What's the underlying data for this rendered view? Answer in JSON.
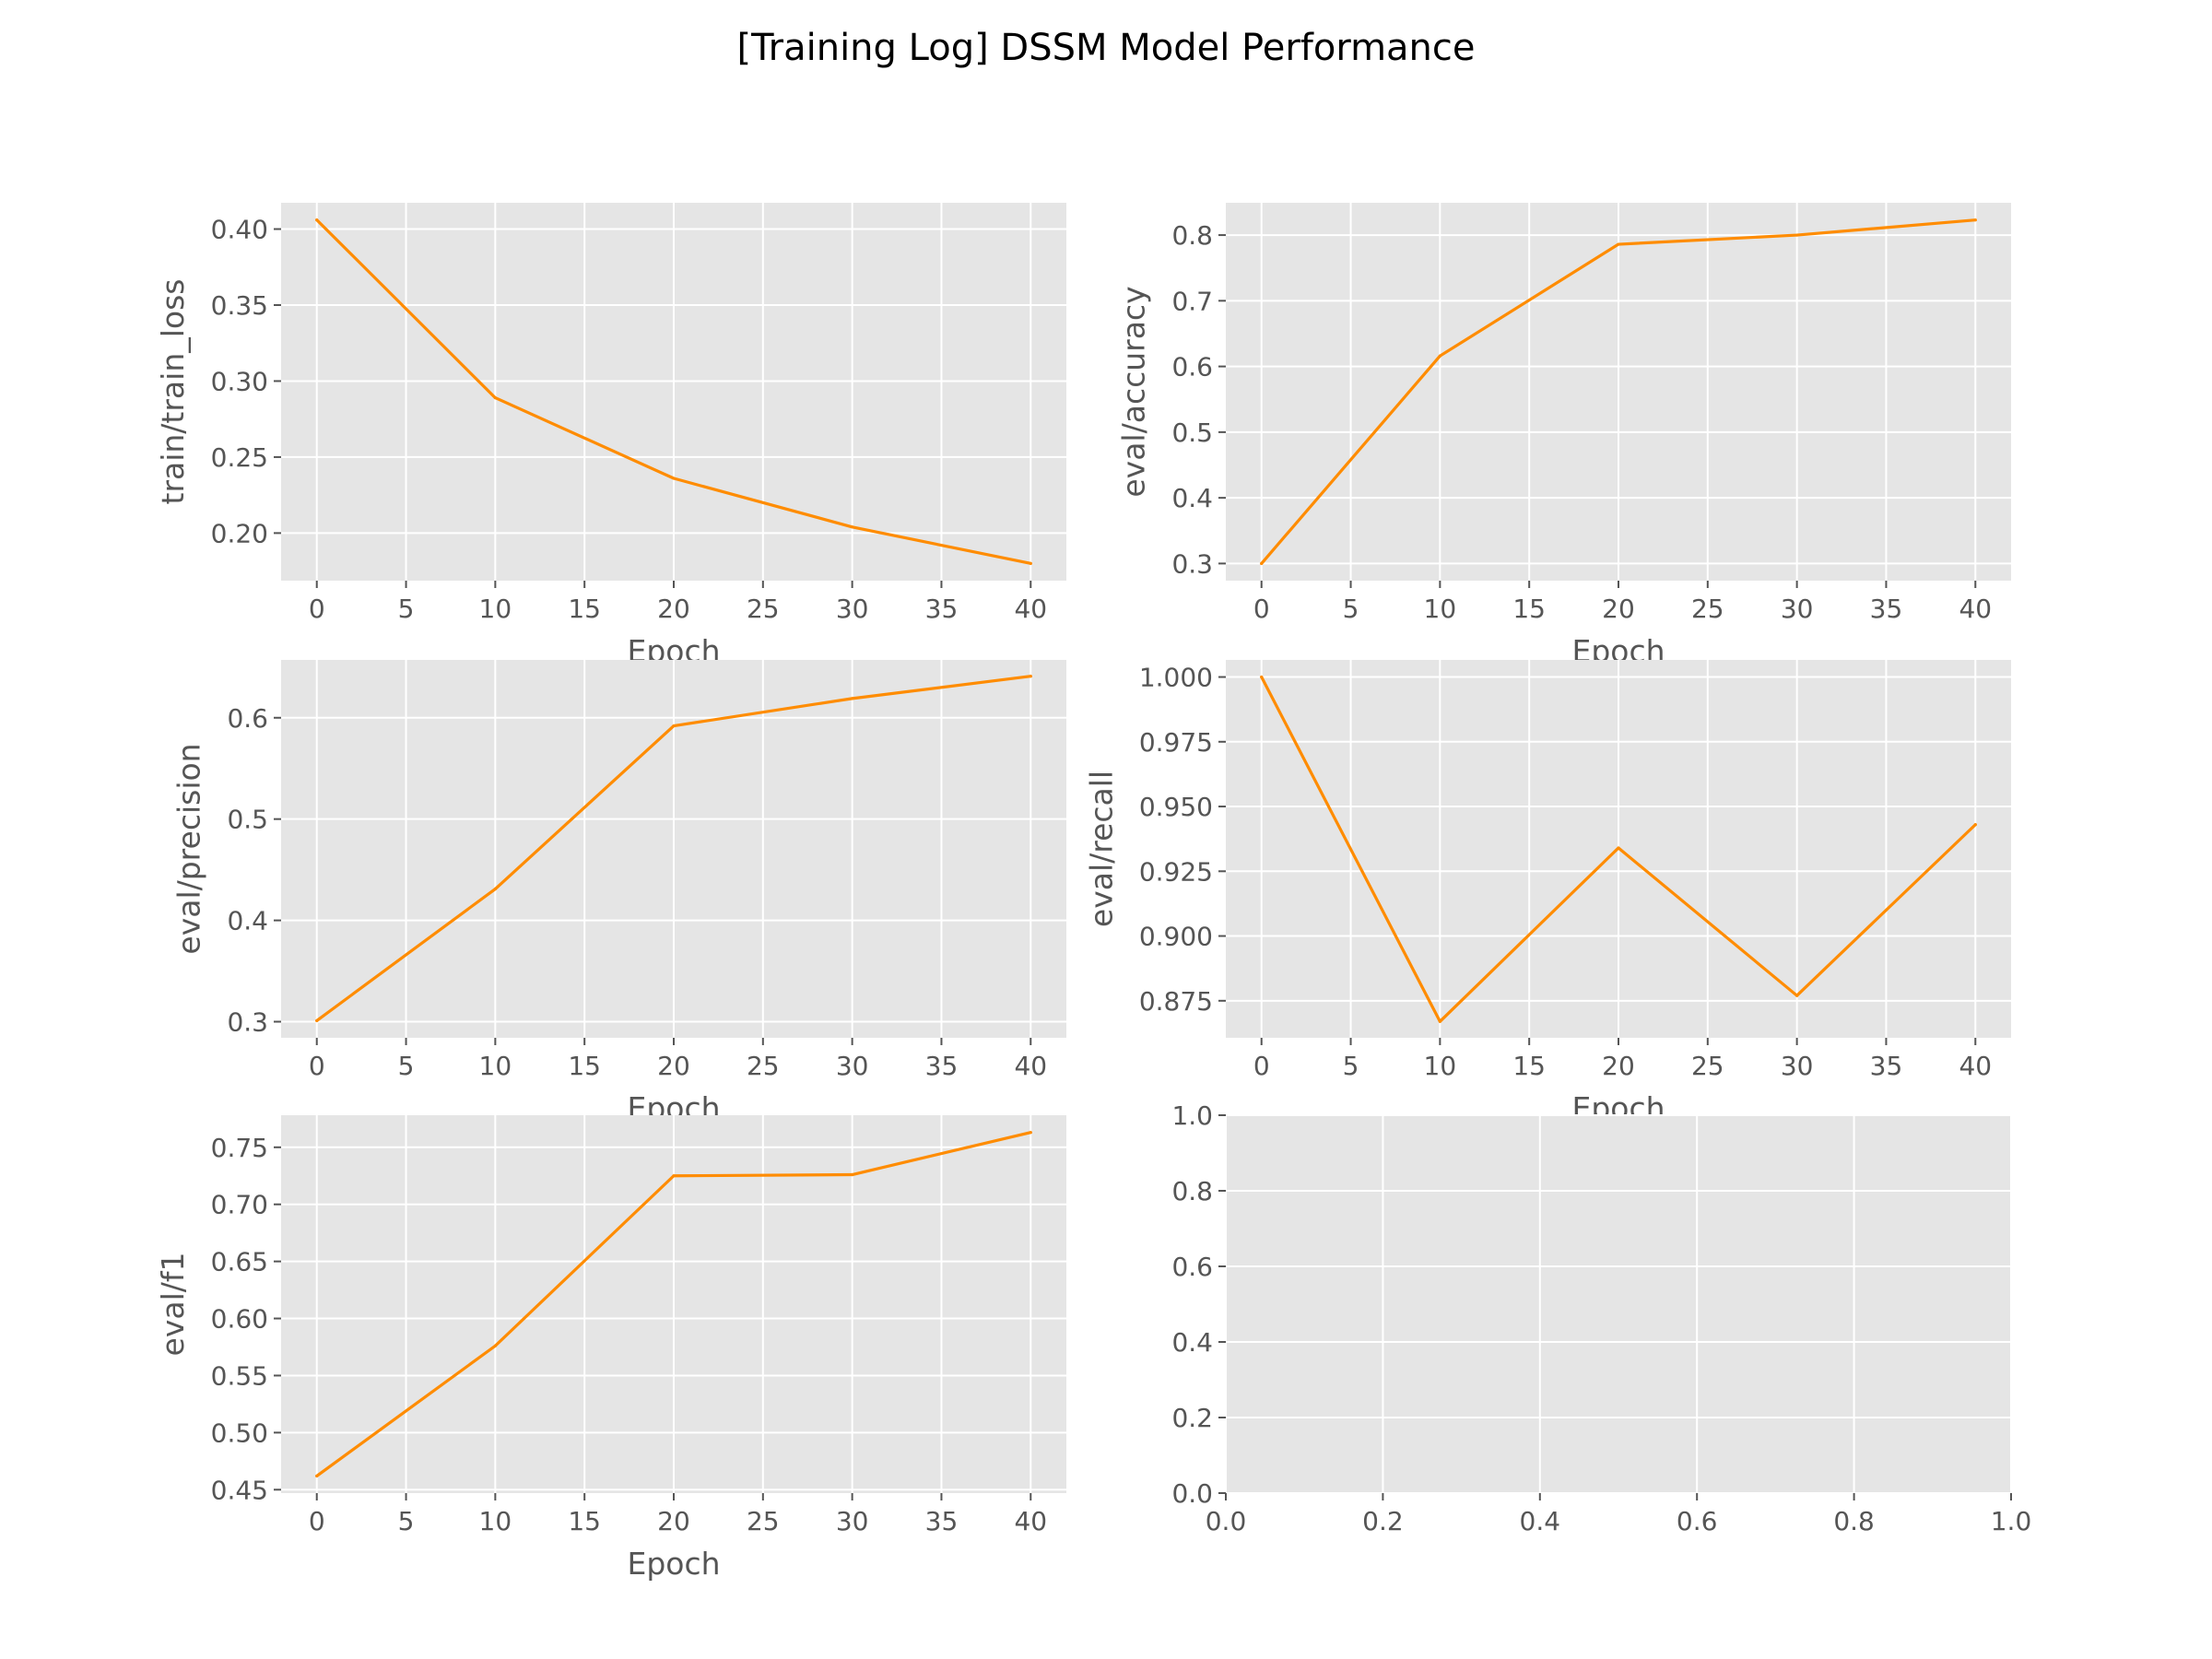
{
  "title": "[Training Log] DSSM Model Performance",
  "line_color": "#ff8c00",
  "panel_bg": "#e5e5e5",
  "grid_color": "#ffffff",
  "tick_color": "#555555",
  "chart_data": [
    {
      "type": "line",
      "x": [
        0,
        10,
        20,
        30,
        40
      ],
      "series": [
        {
          "values": [
            0.406,
            0.289,
            0.236,
            0.204,
            0.18
          ]
        }
      ],
      "xlabel": "Epoch",
      "ylabel": "train/train_loss",
      "xlim": [
        -2,
        42
      ],
      "ylim": [
        0.1687,
        0.4173
      ],
      "xticks": [
        0,
        5,
        10,
        15,
        20,
        25,
        30,
        35,
        40
      ],
      "xtick_labels": [
        "0",
        "5",
        "10",
        "15",
        "20",
        "25",
        "30",
        "35",
        "40"
      ],
      "yticks": [
        0.2,
        0.25,
        0.3,
        0.35,
        0.4
      ],
      "ytick_labels": [
        "0.20",
        "0.25",
        "0.30",
        "0.35",
        "0.40"
      ],
      "grid": true
    },
    {
      "type": "line",
      "x": [
        0,
        10,
        20,
        30,
        40
      ],
      "series": [
        {
          "values": [
            0.3,
            0.616,
            0.786,
            0.8,
            0.823
          ]
        }
      ],
      "xlabel": "Epoch",
      "ylabel": "eval/accuracy",
      "xlim": [
        -2,
        42
      ],
      "ylim": [
        0.2739,
        0.8492
      ],
      "xticks": [
        0,
        5,
        10,
        15,
        20,
        25,
        30,
        35,
        40
      ],
      "xtick_labels": [
        "0",
        "5",
        "10",
        "15",
        "20",
        "25",
        "30",
        "35",
        "40"
      ],
      "yticks": [
        0.3,
        0.4,
        0.5,
        0.6,
        0.7,
        0.8
      ],
      "ytick_labels": [
        "0.3",
        "0.4",
        "0.5",
        "0.6",
        "0.7",
        "0.8"
      ],
      "grid": true
    },
    {
      "type": "line",
      "x": [
        0,
        10,
        20,
        30,
        40
      ],
      "series": [
        {
          "values": [
            0.301,
            0.431,
            0.592,
            0.619,
            0.641
          ]
        }
      ],
      "xlabel": "Epoch",
      "ylabel": "eval/precision",
      "xlim": [
        -2,
        42
      ],
      "ylim": [
        0.2841,
        0.6571
      ],
      "xticks": [
        0,
        5,
        10,
        15,
        20,
        25,
        30,
        35,
        40
      ],
      "xtick_labels": [
        "0",
        "5",
        "10",
        "15",
        "20",
        "25",
        "30",
        "35",
        "40"
      ],
      "yticks": [
        0.3,
        0.4,
        0.5,
        0.6
      ],
      "ytick_labels": [
        "0.3",
        "0.4",
        "0.5",
        "0.6"
      ],
      "grid": true
    },
    {
      "type": "line",
      "x": [
        0,
        10,
        20,
        30,
        40
      ],
      "series": [
        {
          "values": [
            1.0,
            0.867,
            0.934,
            0.877,
            0.943
          ]
        }
      ],
      "xlabel": "Epoch",
      "ylabel": "eval/recall",
      "xlim": [
        -2,
        42
      ],
      "ylim": [
        0.8607,
        1.0066
      ],
      "xticks": [
        0,
        5,
        10,
        15,
        20,
        25,
        30,
        35,
        40
      ],
      "xtick_labels": [
        "0",
        "5",
        "10",
        "15",
        "20",
        "25",
        "30",
        "35",
        "40"
      ],
      "yticks": [
        0.875,
        0.9,
        0.925,
        0.95,
        0.975,
        1.0
      ],
      "ytick_labels": [
        "0.875",
        "0.900",
        "0.925",
        "0.950",
        "0.975",
        "1.000"
      ],
      "grid": true
    },
    {
      "type": "line",
      "x": [
        0,
        10,
        20,
        30,
        40
      ],
      "series": [
        {
          "values": [
            0.462,
            0.576,
            0.725,
            0.726,
            0.763
          ]
        }
      ],
      "xlabel": "Epoch",
      "ylabel": "eval/f1",
      "xlim": [
        -2,
        42
      ],
      "ylim": [
        0.447,
        0.7781
      ],
      "xticks": [
        0,
        5,
        10,
        15,
        20,
        25,
        30,
        35,
        40
      ],
      "xtick_labels": [
        "0",
        "5",
        "10",
        "15",
        "20",
        "25",
        "30",
        "35",
        "40"
      ],
      "yticks": [
        0.45,
        0.5,
        0.55,
        0.6,
        0.65,
        0.7,
        0.75
      ],
      "ytick_labels": [
        "0.45",
        "0.50",
        "0.55",
        "0.60",
        "0.65",
        "0.70",
        "0.75"
      ],
      "grid": true
    },
    {
      "type": "line",
      "x": [],
      "series": [],
      "xlabel": "",
      "ylabel": "",
      "xlim": [
        0,
        1
      ],
      "ylim": [
        0,
        1
      ],
      "xticks": [
        0,
        0.2,
        0.4,
        0.6,
        0.8,
        1.0
      ],
      "xtick_labels": [
        "0.0",
        "0.2",
        "0.4",
        "0.6",
        "0.8",
        "1.0"
      ],
      "yticks": [
        0,
        0.2,
        0.4,
        0.6,
        0.8,
        1.0
      ],
      "ytick_labels": [
        "0.0",
        "0.2",
        "0.4",
        "0.6",
        "0.8",
        "1.0"
      ],
      "grid": true
    }
  ]
}
